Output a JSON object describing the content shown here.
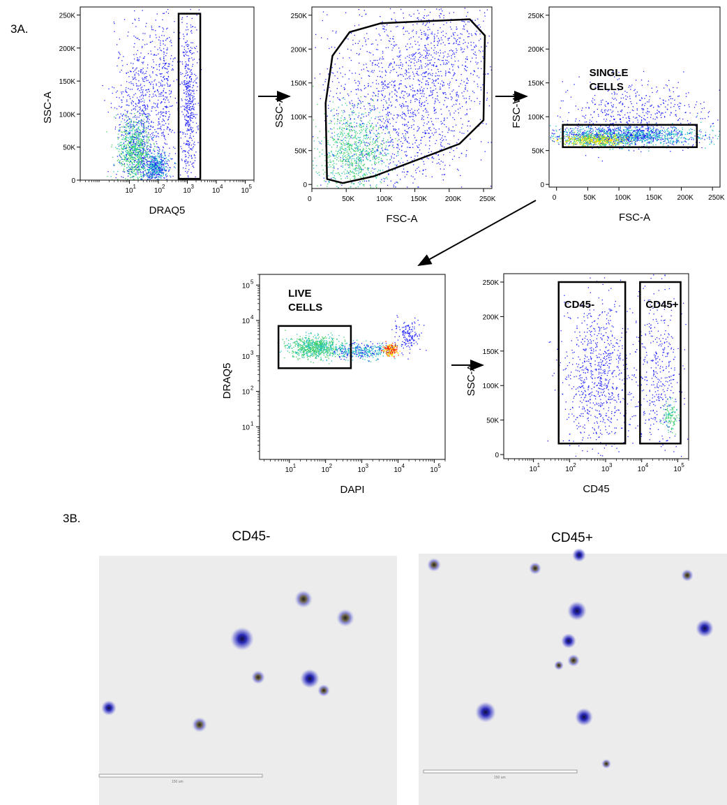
{
  "figure": {
    "panel_a_tag": "3A.",
    "panel_b_tag": "3B.",
    "micrograph_left_title": "CD45-",
    "micrograph_right_title": "CD45+",
    "scale_bar_label": "150 um"
  },
  "colors": {
    "density_low": "#1a1aff",
    "density_mid": "#20c0c0",
    "density_high": "#ffe000",
    "density_peak": "#ff2000",
    "gate": "#000000",
    "micro_bg": "#ececec",
    "cell": "#3030b0"
  },
  "chart_data": [
    {
      "type": "scatter",
      "id": "p1",
      "xlabel": "DRAQ5",
      "ylabel": "SSC-A",
      "xscale": "log",
      "xlim": [
        0.2,
        200000
      ],
      "ylim": [
        0,
        262144
      ],
      "xticks": [
        {
          "v": 10,
          "t": "10"
        },
        {
          "v": 100,
          "t": "10"
        },
        {
          "v": 1000,
          "t": "10"
        },
        {
          "v": 10000,
          "t": "10"
        },
        {
          "v": 100000,
          "t": "10"
        }
      ],
      "xtick_sup": [
        "1",
        "2",
        "3",
        "4",
        "5"
      ],
      "yticks": [
        {
          "v": 0,
          "t": "0"
        },
        {
          "v": 50000,
          "t": "50K"
        },
        {
          "v": 100000,
          "t": "100K"
        },
        {
          "v": 150000,
          "t": "150K"
        },
        {
          "v": 200000,
          "t": "200K"
        },
        {
          "v": 250000,
          "t": "250K"
        }
      ],
      "gates": [
        {
          "shape": "rect",
          "x": [
            500,
            2800
          ],
          "y": [
            2000,
            252000
          ]
        }
      ],
      "populations": [
        {
          "n": 900,
          "x": 15,
          "xs": 0.28,
          "y": 45000,
          "ys": 25000,
          "w": 3
        },
        {
          "n": 500,
          "x": 80,
          "xs": 0.2,
          "y": 20000,
          "ys": 10000,
          "w": 2
        },
        {
          "n": 800,
          "x": 25,
          "xs": 0.45,
          "y": 90000,
          "ys": 70000,
          "w": 1
        },
        {
          "n": 500,
          "x": 1100,
          "xs": 0.14,
          "y": 120000,
          "ys": 65000,
          "w": 1
        },
        {
          "n": 250,
          "x": 150,
          "xs": 0.2,
          "y": 150000,
          "ys": 60000,
          "w": 1
        }
      ]
    },
    {
      "type": "scatter",
      "id": "p2",
      "xlabel": "FSC-A",
      "ylabel": "SSC-A",
      "xscale": "linear",
      "xlim": [
        0,
        262144
      ],
      "ylim": [
        -6000,
        262144
      ],
      "xticks": [
        {
          "v": 0,
          "t": "0"
        },
        {
          "v": 50000,
          "t": "50K"
        },
        {
          "v": 100000,
          "t": "100K"
        },
        {
          "v": 150000,
          "t": "150K"
        },
        {
          "v": 200000,
          "t": "200K"
        },
        {
          "v": 250000,
          "t": "250K"
        }
      ],
      "yticks": [
        {
          "v": 0,
          "t": "0"
        },
        {
          "v": 50000,
          "t": "50K"
        },
        {
          "v": 100000,
          "t": "100K"
        },
        {
          "v": 150000,
          "t": "150K"
        },
        {
          "v": 200000,
          "t": "200K"
        },
        {
          "v": 250000,
          "t": "250K"
        }
      ],
      "gates": [
        {
          "shape": "polygon",
          "points": [
            [
              140000,
              240000
            ],
            [
              230000,
              244000
            ],
            [
              252000,
              220000
            ],
            [
              250000,
              95000
            ],
            [
              215000,
              60000
            ],
            [
              90000,
              12000
            ],
            [
              45000,
              2000
            ],
            [
              22000,
              8000
            ],
            [
              20000,
              120000
            ],
            [
              30000,
              190000
            ],
            [
              55000,
              225000
            ],
            [
              100000,
              238000
            ]
          ]
        }
      ],
      "populations": [
        {
          "n": 1500,
          "x": 130000,
          "xs": 55000,
          "y": 120000,
          "ys": 70000,
          "w": 1
        },
        {
          "n": 900,
          "x": 60000,
          "xs": 25000,
          "y": 50000,
          "ys": 30000,
          "w": 3
        },
        {
          "n": 400,
          "x": 200000,
          "xs": 40000,
          "y": 200000,
          "ys": 40000,
          "w": 1
        }
      ]
    },
    {
      "type": "scatter",
      "id": "p3",
      "xlabel": "FSC-A",
      "ylabel": "FSC-W",
      "xscale": "linear",
      "xlim": [
        -12000,
        262144
      ],
      "ylim": [
        -4000,
        262144
      ],
      "xticks": [
        {
          "v": 0,
          "t": "0"
        },
        {
          "v": 50000,
          "t": "50K"
        },
        {
          "v": 100000,
          "t": "100K"
        },
        {
          "v": 150000,
          "t": "150K"
        },
        {
          "v": 200000,
          "t": "200K"
        },
        {
          "v": 250000,
          "t": "250K"
        }
      ],
      "yticks": [
        {
          "v": 0,
          "t": "0"
        },
        {
          "v": 50000,
          "t": "50K"
        },
        {
          "v": 100000,
          "t": "100K"
        },
        {
          "v": 150000,
          "t": "150K"
        },
        {
          "v": 200000,
          "t": "200K"
        },
        {
          "v": 250000,
          "t": "250K"
        }
      ],
      "gates": [
        {
          "shape": "rect",
          "x": [
            10000,
            225000
          ],
          "y": [
            55000,
            88000
          ],
          "label": "SINGLE\nCELLS"
        }
      ],
      "populations": [
        {
          "n": 1600,
          "x": 110000,
          "xs": 60000,
          "y": 72000,
          "ys": 7000,
          "w": 2
        },
        {
          "n": 500,
          "x": 60000,
          "xs": 25000,
          "y": 66000,
          "ys": 4000,
          "w": 4
        },
        {
          "n": 500,
          "x": 120000,
          "xs": 60000,
          "y": 105000,
          "ys": 25000,
          "w": 1
        }
      ]
    },
    {
      "type": "scatter",
      "id": "p4",
      "xlabel": "DAPI",
      "ylabel": "DRAQ5",
      "xscale": "log",
      "yscale": "log",
      "xlim": [
        1.5,
        200000
      ],
      "ylim": [
        1.2,
        200000
      ],
      "xticks": [
        {
          "v": 10,
          "t": "10"
        },
        {
          "v": 100,
          "t": "10"
        },
        {
          "v": 1000,
          "t": "10"
        },
        {
          "v": 10000,
          "t": "10"
        },
        {
          "v": 100000,
          "t": "10"
        }
      ],
      "xtick_sup": [
        "1",
        "2",
        "3",
        "4",
        "5"
      ],
      "yticks": [
        {
          "v": 10,
          "t": "10"
        },
        {
          "v": 100,
          "t": "10"
        },
        {
          "v": 1000,
          "t": "10"
        },
        {
          "v": 10000,
          "t": "10"
        },
        {
          "v": 100000,
          "t": "10"
        }
      ],
      "ytick_sup": [
        "1",
        "2",
        "3",
        "4",
        "5"
      ],
      "gates": [
        {
          "shape": "rect",
          "x": [
            5,
            500
          ],
          "y": [
            450,
            7000
          ],
          "label": "LIVE\nCELLS"
        }
      ],
      "populations": [
        {
          "n": 800,
          "x": 50,
          "xs": 0.35,
          "y": 1800,
          "ys": 0.15,
          "w": 3
        },
        {
          "n": 400,
          "x": 900,
          "xs": 0.4,
          "y": 1400,
          "ys": 0.12,
          "w": 2
        },
        {
          "n": 200,
          "x": 6000,
          "xs": 0.1,
          "y": 1500,
          "ys": 0.08,
          "w": 6
        },
        {
          "n": 150,
          "x": 18000,
          "xs": 0.18,
          "y": 4000,
          "ys": 0.2,
          "w": 1
        }
      ]
    },
    {
      "type": "scatter",
      "id": "p5",
      "xlabel": "CD45",
      "ylabel": "SSC-A",
      "xscale": "log",
      "xlim": [
        1.5,
        200000
      ],
      "ylim": [
        -6000,
        262144
      ],
      "xticks": [
        {
          "v": 10,
          "t": "10"
        },
        {
          "v": 100,
          "t": "10"
        },
        {
          "v": 1000,
          "t": "10"
        },
        {
          "v": 10000,
          "t": "10"
        },
        {
          "v": 100000,
          "t": "10"
        }
      ],
      "xtick_sup": [
        "1",
        "2",
        "3",
        "4",
        "5"
      ],
      "yticks": [
        {
          "v": 0,
          "t": "0"
        },
        {
          "v": 50000,
          "t": "50K"
        },
        {
          "v": 100000,
          "t": "100K"
        },
        {
          "v": 150000,
          "t": "150K"
        },
        {
          "v": 200000,
          "t": "200K"
        },
        {
          "v": 250000,
          "t": "250K"
        }
      ],
      "gates": [
        {
          "shape": "rect",
          "x": [
            50,
            3500
          ],
          "y": [
            16000,
            250000
          ],
          "label": "CD45-"
        },
        {
          "shape": "rect",
          "x": [
            9000,
            120000
          ],
          "y": [
            16000,
            250000
          ],
          "label": "CD45+"
        }
      ],
      "populations": [
        {
          "n": 800,
          "x": 600,
          "xs": 0.45,
          "y": 115000,
          "ys": 55000,
          "w": 1
        },
        {
          "n": 400,
          "x": 30000,
          "xs": 0.35,
          "y": 120000,
          "ys": 60000,
          "w": 1
        },
        {
          "n": 120,
          "x": 60000,
          "xs": 0.1,
          "y": 55000,
          "ys": 10000,
          "w": 3
        }
      ]
    }
  ]
}
